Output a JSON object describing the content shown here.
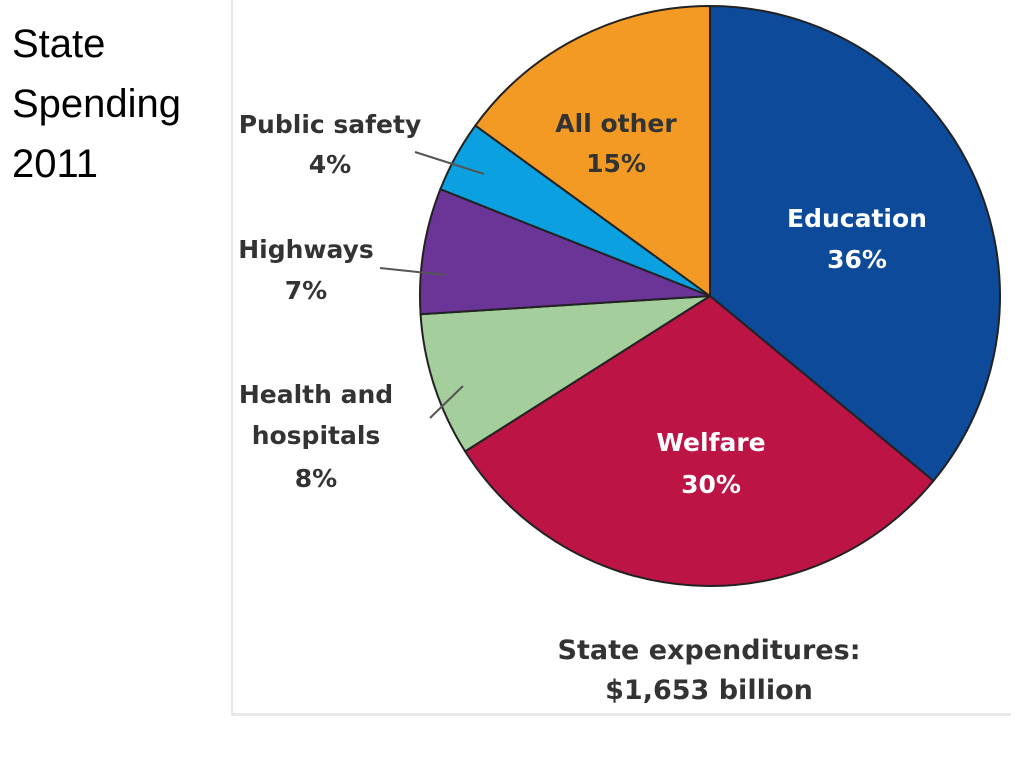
{
  "slide": {
    "title_lines": [
      "State",
      "Spending",
      "2011"
    ]
  },
  "chart_data": {
    "type": "pie",
    "slices": [
      {
        "label": "Education",
        "value": 36,
        "value_label": "36%",
        "color": "#0d4a99",
        "text_color": "#ffffff"
      },
      {
        "label": "Welfare",
        "value": 30,
        "value_label": "30%",
        "color": "#bd1446",
        "text_color": "#ffffff"
      },
      {
        "label": "Health and hospitals",
        "label_lines": [
          "Health and",
          "hospitals"
        ],
        "value": 8,
        "value_label": "8%",
        "color": "#a4ce9c",
        "text_color": "#333333"
      },
      {
        "label": "Highways",
        "value": 7,
        "value_label": "7%",
        "color": "#6b3497",
        "text_color": "#333333"
      },
      {
        "label": "Public safety",
        "value": 4,
        "value_label": "4%",
        "color": "#0ba0e0",
        "text_color": "#333333"
      },
      {
        "label": "All other",
        "value": 15,
        "value_label": "15%",
        "color": "#f39a24",
        "text_color": "#333333"
      }
    ],
    "caption": {
      "line1": "State expenditures:",
      "line2": "$1,653 billion"
    }
  }
}
